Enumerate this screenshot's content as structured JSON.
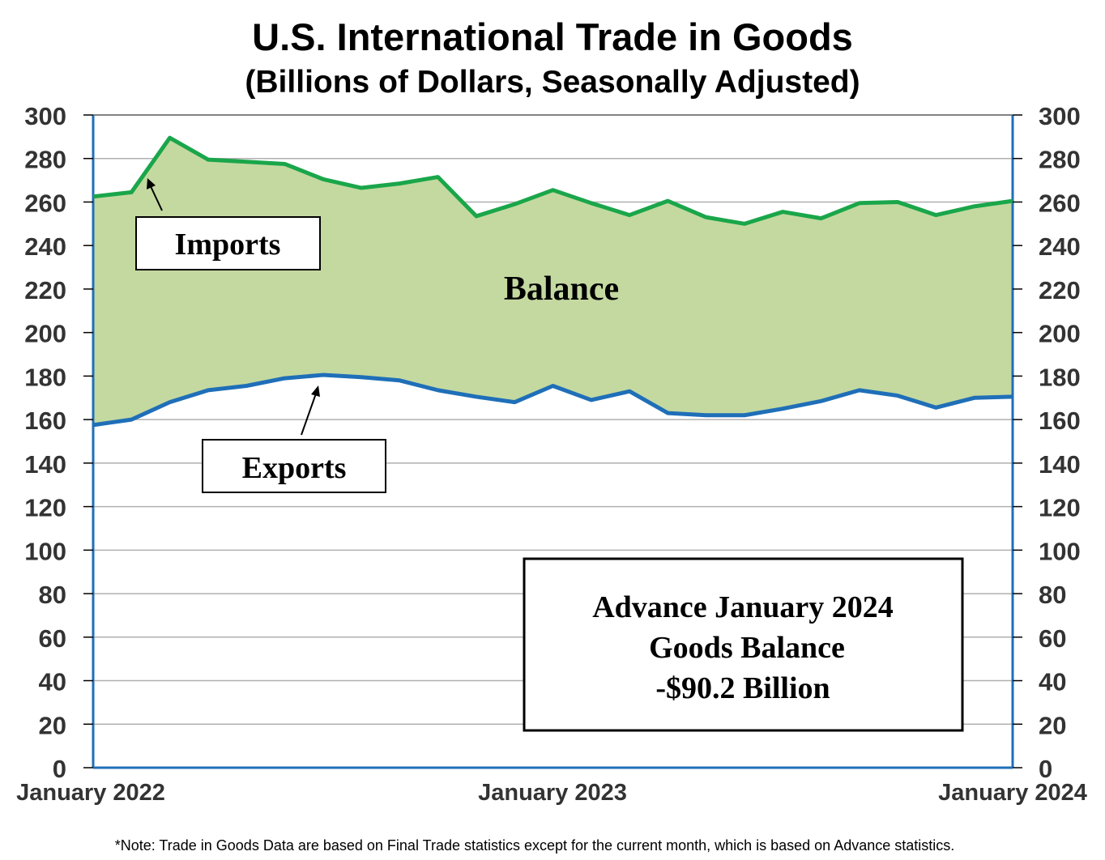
{
  "title": "U.S. International Trade in Goods",
  "subtitle": "(Billions of Dollars, Seasonally Adjusted)",
  "note": "*Note: Trade in Goods Data are based on Final Trade statistics except for the current month, which is based on Advance statistics.",
  "colors": {
    "imports_line": "#1aa64a",
    "exports_line": "#1f6fb8",
    "balance_fill": "#c4d9a0",
    "grid": "#b0b0b0",
    "axis_text": "#333333"
  },
  "chart_data": {
    "type": "area",
    "title": "U.S. International Trade in Goods",
    "subtitle": "(Billions of Dollars, Seasonally Adjusted)",
    "x_tick_labels": [
      "January 2022",
      "January 2023",
      "January 2024"
    ],
    "x": [
      "2022-01",
      "2022-02",
      "2022-03",
      "2022-04",
      "2022-05",
      "2022-06",
      "2022-07",
      "2022-08",
      "2022-09",
      "2022-10",
      "2022-11",
      "2022-12",
      "2023-01",
      "2023-02",
      "2023-03",
      "2023-04",
      "2023-05",
      "2023-06",
      "2023-07",
      "2023-08",
      "2023-09",
      "2023-10",
      "2023-11",
      "2023-12",
      "2024-01"
    ],
    "ylim": [
      0,
      300
    ],
    "y_ticks": [
      0,
      20,
      40,
      60,
      80,
      100,
      120,
      140,
      160,
      180,
      200,
      220,
      240,
      260,
      280,
      300
    ],
    "grid": true,
    "series": [
      {
        "name": "Imports",
        "values": [
          262.5,
          264.5,
          289.5,
          279.5,
          278.5,
          277.5,
          270.5,
          266.5,
          268.5,
          271.5,
          253.5,
          259.0,
          265.5,
          259.5,
          254.0,
          260.5,
          253.0,
          250.0,
          255.5,
          252.5,
          259.5,
          260.0,
          254.0,
          258.0,
          260.5
        ]
      },
      {
        "name": "Exports",
        "values": [
          157.5,
          160.0,
          168.0,
          173.5,
          175.5,
          179.0,
          180.5,
          179.5,
          178.0,
          173.5,
          170.5,
          168.0,
          175.5,
          169.0,
          173.0,
          163.0,
          162.0,
          162.0,
          165.0,
          168.5,
          173.5,
          171.0,
          165.5,
          170.0,
          170.5
        ]
      }
    ],
    "area_label": "Balance",
    "annotation": {
      "line1": "Advance January 2024",
      "line2": "Goods Balance",
      "line3": "-$90.2 Billion"
    },
    "labels": {
      "imports": "Imports",
      "exports": "Exports"
    }
  }
}
